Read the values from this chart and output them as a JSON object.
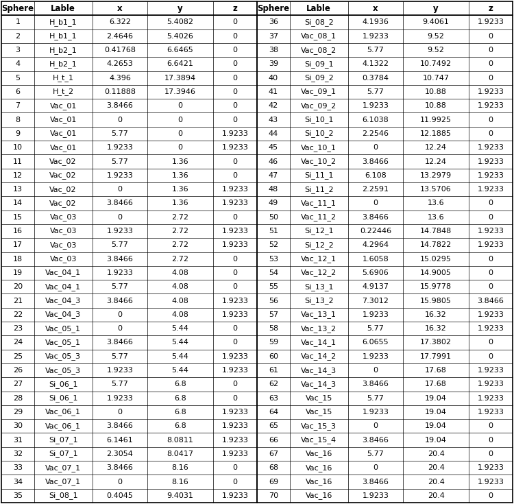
{
  "headers": [
    "Sphere",
    "Lable",
    "x",
    "y",
    "z"
  ],
  "left_data": [
    [
      "1",
      "H_b1_1",
      "6.322",
      "5.4082",
      "0"
    ],
    [
      "2",
      "H_b1_1",
      "2.4646",
      "5.4026",
      "0"
    ],
    [
      "3",
      "H_b2_1",
      "0.41768",
      "6.6465",
      "0"
    ],
    [
      "4",
      "H_b2_1",
      "4.2653",
      "6.6421",
      "0"
    ],
    [
      "5",
      "H_t_1",
      "4.396",
      "17.3894",
      "0"
    ],
    [
      "6",
      "H_t_2",
      "0.11888",
      "17.3946",
      "0"
    ],
    [
      "7",
      "Vac_01",
      "3.8466",
      "0",
      "0"
    ],
    [
      "8",
      "Vac_01",
      "0",
      "0",
      "0"
    ],
    [
      "9",
      "Vac_01",
      "5.77",
      "0",
      "1.9233"
    ],
    [
      "10",
      "Vac_01",
      "1.9233",
      "0",
      "1.9233"
    ],
    [
      "11",
      "Vac_02",
      "5.77",
      "1.36",
      "0"
    ],
    [
      "12",
      "Vac_02",
      "1.9233",
      "1.36",
      "0"
    ],
    [
      "13",
      "Vac_02",
      "0",
      "1.36",
      "1.9233"
    ],
    [
      "14",
      "Vac_02",
      "3.8466",
      "1.36",
      "1.9233"
    ],
    [
      "15",
      "Vac_03",
      "0",
      "2.72",
      "0"
    ],
    [
      "16",
      "Vac_03",
      "1.9233",
      "2.72",
      "1.9233"
    ],
    [
      "17",
      "Vac_03",
      "5.77",
      "2.72",
      "1.9233"
    ],
    [
      "18",
      "Vac_03",
      "3.8466",
      "2.72",
      "0"
    ],
    [
      "19",
      "Vac_04_1",
      "1.9233",
      "4.08",
      "0"
    ],
    [
      "20",
      "Vac_04_1",
      "5.77",
      "4.08",
      "0"
    ],
    [
      "21",
      "Vac_04_3",
      "3.8466",
      "4.08",
      "1.9233"
    ],
    [
      "22",
      "Vac_04_3",
      "0",
      "4.08",
      "1.9233"
    ],
    [
      "23",
      "Vac_05_1",
      "0",
      "5.44",
      "0"
    ],
    [
      "24",
      "Vac_05_1",
      "3.8466",
      "5.44",
      "0"
    ],
    [
      "25",
      "Vac_05_3",
      "5.77",
      "5.44",
      "1.9233"
    ],
    [
      "26",
      "Vac_05_3",
      "1.9233",
      "5.44",
      "1.9233"
    ],
    [
      "27",
      "Si_06_1",
      "5.77",
      "6.8",
      "0"
    ],
    [
      "28",
      "Si_06_1",
      "1.9233",
      "6.8",
      "0"
    ],
    [
      "29",
      "Vac_06_1",
      "0",
      "6.8",
      "1.9233"
    ],
    [
      "30",
      "Vac_06_1",
      "3.8466",
      "6.8",
      "1.9233"
    ],
    [
      "31",
      "Si_07_1",
      "6.1461",
      "8.0811",
      "1.9233"
    ],
    [
      "32",
      "Si_07_1",
      "2.3054",
      "8.0417",
      "1.9233"
    ],
    [
      "33",
      "Vac_07_1",
      "3.8466",
      "8.16",
      "0"
    ],
    [
      "34",
      "Vac_07_1",
      "0",
      "8.16",
      "0"
    ],
    [
      "35",
      "Si_08_1",
      "0.4045",
      "9.4031",
      "1.9233"
    ]
  ],
  "right_data": [
    [
      "36",
      "Si_08_2",
      "4.1936",
      "9.4061",
      "1.9233"
    ],
    [
      "37",
      "Vac_08_1",
      "1.9233",
      "9.52",
      "0"
    ],
    [
      "38",
      "Vac_08_2",
      "5.77",
      "9.52",
      "0"
    ],
    [
      "39",
      "Si_09_1",
      "4.1322",
      "10.7492",
      "0"
    ],
    [
      "40",
      "Si_09_2",
      "0.3784",
      "10.747",
      "0"
    ],
    [
      "41",
      "Vac_09_1",
      "5.77",
      "10.88",
      "1.9233"
    ],
    [
      "42",
      "Vac_09_2",
      "1.9233",
      "10.88",
      "1.9233"
    ],
    [
      "43",
      "Si_10_1",
      "6.1038",
      "11.9925",
      "0"
    ],
    [
      "44",
      "Si_10_2",
      "2.2546",
      "12.1885",
      "0"
    ],
    [
      "45",
      "Vac_10_1",
      "0",
      "12.24",
      "1.9233"
    ],
    [
      "46",
      "Vac_10_2",
      "3.8466",
      "12.24",
      "1.9233"
    ],
    [
      "47",
      "Si_11_1",
      "6.108",
      "13.2979",
      "1.9233"
    ],
    [
      "48",
      "Si_11_2",
      "2.2591",
      "13.5706",
      "1.9233"
    ],
    [
      "49",
      "Vac_11_1",
      "0",
      "13.6",
      "0"
    ],
    [
      "50",
      "Vac_11_2",
      "3.8466",
      "13.6",
      "0"
    ],
    [
      "51",
      "Si_12_1",
      "0.22446",
      "14.7848",
      "1.9233"
    ],
    [
      "52",
      "Si_12_2",
      "4.2964",
      "14.7822",
      "1.9233"
    ],
    [
      "53",
      "Vac_12_1",
      "1.6058",
      "15.0295",
      "0"
    ],
    [
      "54",
      "Vac_12_2",
      "5.6906",
      "14.9005",
      "0"
    ],
    [
      "55",
      "Si_13_1",
      "4.9137",
      "15.9778",
      "0"
    ],
    [
      "56",
      "Si_13_2",
      "7.3012",
      "15.9805",
      "3.8466"
    ],
    [
      "57",
      "Vac_13_1",
      "1.9233",
      "16.32",
      "1.9233"
    ],
    [
      "58",
      "Vac_13_2",
      "5.77",
      "16.32",
      "1.9233"
    ],
    [
      "59",
      "Vac_14_1",
      "6.0655",
      "17.3802",
      "0"
    ],
    [
      "60",
      "Vac_14_2",
      "1.9233",
      "17.7991",
      "0"
    ],
    [
      "61",
      "Vac_14_3",
      "0",
      "17.68",
      "1.9233"
    ],
    [
      "62",
      "Vac_14_3",
      "3.8466",
      "17.68",
      "1.9233"
    ],
    [
      "63",
      "Vac_15",
      "5.77",
      "19.04",
      "1.9233"
    ],
    [
      "64",
      "Vac_15",
      "1.9233",
      "19.04",
      "1.9233"
    ],
    [
      "65",
      "Vac_15_3",
      "0",
      "19.04",
      "0"
    ],
    [
      "66",
      "Vac_15_4",
      "3.8466",
      "19.04",
      "0"
    ],
    [
      "67",
      "Vac_16",
      "5.77",
      "20.4",
      "0"
    ],
    [
      "68",
      "Vac_16",
      "0",
      "20.4",
      "1.9233"
    ],
    [
      "69",
      "Vac_16",
      "3.8466",
      "20.4",
      "1.9233"
    ],
    [
      "70",
      "Vac_16",
      "1.9233",
      "20.4",
      "0"
    ]
  ],
  "bg_color": "#ffffff",
  "text_color": "#000000",
  "line_color": "#000000",
  "font_size": 8.0,
  "header_font_size": 8.5
}
